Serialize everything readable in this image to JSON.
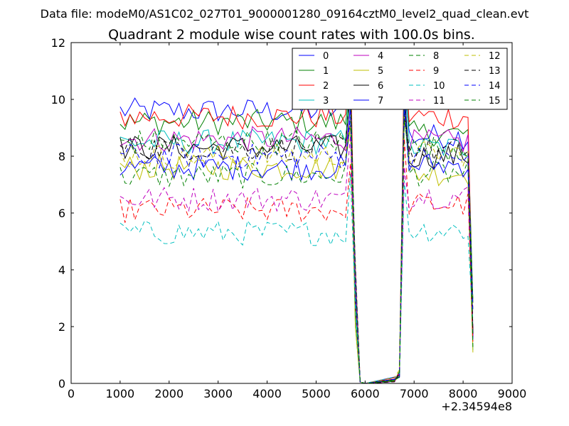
{
  "chart_data": {
    "type": "line",
    "file_label": "Data file: modeM0/AS1C02_027T01_9000001280_09164cztM0_level2_quad_clean.evt",
    "title": "Quadrant 2 module wise count rates with 100.0s bins.",
    "xlabel": "",
    "ylabel": "",
    "x_offset_label": "+2.34594e8",
    "xlim": [
      0,
      9000
    ],
    "ylim": [
      0,
      12
    ],
    "x_ticks": [
      "0",
      "1000",
      "2000",
      "3000",
      "4000",
      "5000",
      "6000",
      "7000",
      "8000",
      "9000"
    ],
    "y_ticks": [
      "0",
      "2",
      "4",
      "6",
      "8",
      "10",
      "12"
    ],
    "grid": false,
    "legend_position": "top-right",
    "legend_columns": 4,
    "series": [
      {
        "name": "0",
        "color": "#0000ff",
        "dash": "solid",
        "gti1_level": 9.6,
        "post_gap_level": 8.7
      },
      {
        "name": "1",
        "color": "#008000",
        "dash": "solid",
        "gti1_level": 9.2,
        "post_gap_level": 8.8
      },
      {
        "name": "2",
        "color": "#ff0000",
        "dash": "solid",
        "gti1_level": 9.4,
        "post_gap_level": 9.4
      },
      {
        "name": "3",
        "color": "#00bfbf",
        "dash": "solid",
        "gti1_level": 8.5,
        "post_gap_level": 8.3
      },
      {
        "name": "4",
        "color": "#bf00bf",
        "dash": "solid",
        "gti1_level": 8.6,
        "post_gap_level": 8.5
      },
      {
        "name": "5",
        "color": "#bfbf00",
        "dash": "solid",
        "gti1_level": 7.6,
        "post_gap_level": 7.4
      },
      {
        "name": "6",
        "color": "#000000",
        "dash": "solid",
        "gti1_level": 8.3,
        "post_gap_level": 8.0
      },
      {
        "name": "7",
        "color": "#0000ff",
        "dash": "solid",
        "gti1_level": 7.6,
        "post_gap_level": 7.7
      },
      {
        "name": "8",
        "color": "#008000",
        "dash": "dashed",
        "gti1_level": 7.3,
        "post_gap_level": 7.4
      },
      {
        "name": "9",
        "color": "#ff0000",
        "dash": "dashed",
        "gti1_level": 6.1,
        "post_gap_level": 6.3
      },
      {
        "name": "10",
        "color": "#00bfbf",
        "dash": "dashed",
        "gti1_level": 5.3,
        "post_gap_level": 5.4
      },
      {
        "name": "11",
        "color": "#bf00bf",
        "dash": "dashed",
        "gti1_level": 6.5,
        "post_gap_level": 6.6
      },
      {
        "name": "12",
        "color": "#bfbf00",
        "dash": "dashed",
        "gti1_level": 8.0,
        "post_gap_level": 8.1
      },
      {
        "name": "13",
        "color": "#000000",
        "dash": "dashed",
        "gti1_level": 8.3,
        "post_gap_level": 8.2
      },
      {
        "name": "14",
        "color": "#0000ff",
        "dash": "dashed",
        "gti1_level": 8.0,
        "post_gap_level": 7.9
      },
      {
        "name": "15",
        "color": "#008000",
        "dash": "dashed",
        "gti1_level": 8.5,
        "post_gap_level": 8.3
      }
    ],
    "time_profile": {
      "gti1_x": [
        1000,
        5650
      ],
      "spike_x": 5700,
      "drop_x": [
        5800,
        5900
      ],
      "zero_x": [
        6000,
        6600
      ],
      "rise_x": [
        6700,
        6800
      ],
      "gti2_x": [
        6800,
        8100
      ],
      "end_x": 8200,
      "step": 100
    }
  }
}
